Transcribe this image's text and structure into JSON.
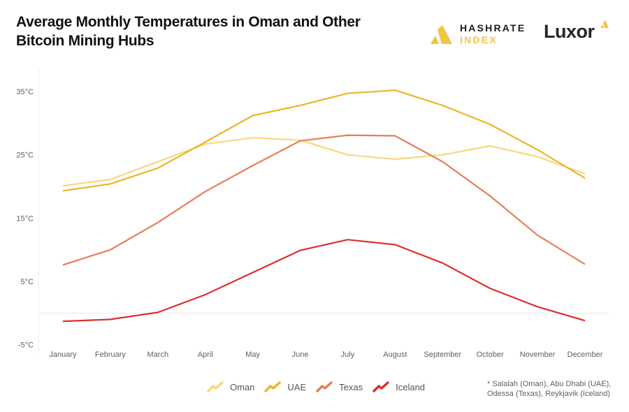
{
  "header": {
    "title_line1": "Average Monthly Temperatures in Oman and Other",
    "title_line2": "Bitcoin Mining Hubs",
    "logo_hashrate_line1": "HASHRATE",
    "logo_hashrate_line2": "INDEX",
    "logo_luxor": "Luxor"
  },
  "footnote": {
    "line1": "* Salalah (Oman), Abu Dhabi (UAE),",
    "line2": "Odessa (Texas), Reykjavik (Iceland)"
  },
  "chart_data": {
    "type": "line",
    "title": "Average Monthly Temperatures in Oman and Other Bitcoin Mining Hubs",
    "xlabel": "",
    "ylabel": "",
    "categories": [
      "January",
      "February",
      "March",
      "April",
      "May",
      "June",
      "July",
      "August",
      "September",
      "October",
      "November",
      "December"
    ],
    "y_ticks": [
      -5,
      5,
      15,
      25,
      35
    ],
    "y_tick_labels": [
      "-5°C",
      "5°C",
      "15°C",
      "25°C",
      "35°C"
    ],
    "ylim": [
      -5,
      38
    ],
    "zero_line": true,
    "grid": false,
    "legend_position": "bottom",
    "series": [
      {
        "name": "Oman",
        "color": "#f9d77e",
        "values": [
          20.1,
          21.1,
          23.9,
          26.7,
          27.7,
          27.3,
          25.0,
          24.3,
          25.0,
          26.4,
          24.7,
          22.0
        ]
      },
      {
        "name": "UAE",
        "color": "#ebb628",
        "values": [
          19.3,
          20.4,
          22.9,
          27.0,
          31.2,
          32.8,
          34.7,
          35.2,
          32.8,
          29.8,
          25.8,
          21.3
        ]
      },
      {
        "name": "Texas",
        "color": "#e47f56",
        "values": [
          7.6,
          10.0,
          14.3,
          19.2,
          23.3,
          27.2,
          28.1,
          28.0,
          23.9,
          18.5,
          12.3,
          7.7
        ]
      },
      {
        "name": "Iceland",
        "color": "#dd2f2f",
        "values": [
          -1.3,
          -1.0,
          0.1,
          2.9,
          6.4,
          9.9,
          11.6,
          10.8,
          7.9,
          3.9,
          1.0,
          -1.2
        ]
      }
    ],
    "annotation": "* Salalah (Oman), Abu Dhabi (UAE), Odessa (Texas), Reykjavik (Iceland)"
  }
}
